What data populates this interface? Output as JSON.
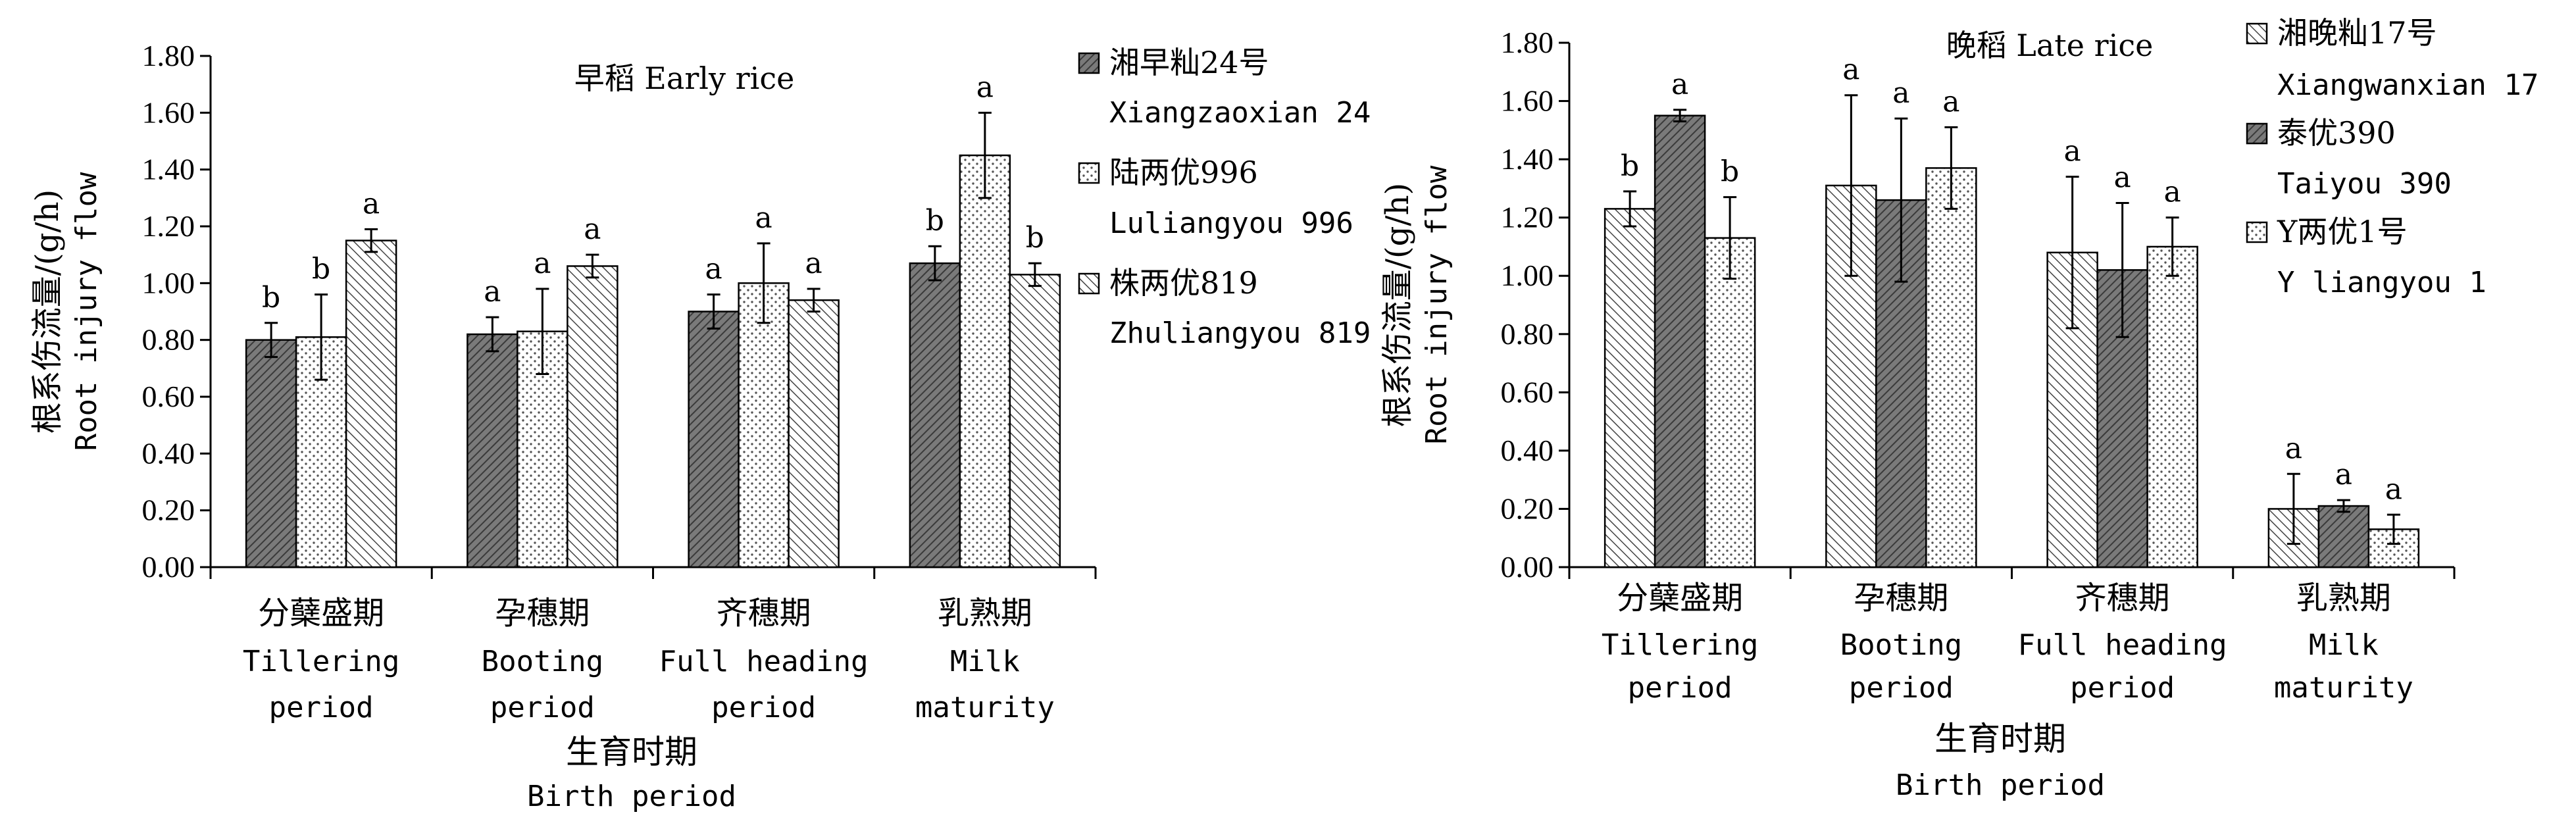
{
  "chart_data": [
    {
      "type": "bar",
      "title": "早稻 Early rice",
      "ylabel_zh": "根系伤流量/(g/h)",
      "ylabel_en": "Root injury flow",
      "xlabel_zh": "生育时期",
      "xlabel_en": "Birth period",
      "ylim": [
        0,
        1.8
      ],
      "yticks": [
        "0.00",
        "0.20",
        "0.40",
        "0.60",
        "0.80",
        "1.00",
        "1.20",
        "1.40",
        "1.60",
        "1.80"
      ],
      "categories": [
        {
          "zh": "分蘖盛期",
          "en1": "Tillering",
          "en2": "period"
        },
        {
          "zh": "孕穗期",
          "en1": "Booting",
          "en2": "period"
        },
        {
          "zh": "齐穗期",
          "en1": "Full heading",
          "en2": "period"
        },
        {
          "zh": "乳熟期",
          "en1": "Milk",
          "en2": "maturity"
        }
      ],
      "series": [
        {
          "name_zh": "湘早籼24号",
          "name_en": "Xiangzaoxian 24",
          "pattern": "dark",
          "values": [
            0.8,
            0.82,
            0.9,
            1.07
          ],
          "errors": [
            0.06,
            0.06,
            0.06,
            0.06
          ],
          "letters": [
            "b",
            "a",
            "a",
            "b"
          ]
        },
        {
          "name_zh": "陆两优996",
          "name_en": "Luliangyou 996",
          "pattern": "dots",
          "values": [
            0.81,
            0.83,
            1.0,
            1.45
          ],
          "errors": [
            0.15,
            0.15,
            0.14,
            0.15
          ],
          "letters": [
            "b",
            "a",
            "a",
            "a"
          ]
        },
        {
          "name_zh": "株两优819",
          "name_en": "Zhuliangyou 819",
          "pattern": "hatch",
          "values": [
            1.15,
            1.06,
            0.94,
            1.03
          ],
          "errors": [
            0.04,
            0.04,
            0.04,
            0.04
          ],
          "letters": [
            "a",
            "a",
            "a",
            "b"
          ]
        }
      ]
    },
    {
      "type": "bar",
      "title": "晚稻 Late rice",
      "ylabel_zh": "根系伤流量/(g/h)",
      "ylabel_en": "Root injury flow",
      "xlabel_zh": "生育时期",
      "xlabel_en": "Birth period",
      "ylim": [
        0,
        1.8
      ],
      "yticks": [
        "0.00",
        "0.20",
        "0.40",
        "0.60",
        "0.80",
        "1.00",
        "1.20",
        "1.40",
        "1.60",
        "1.80"
      ],
      "categories": [
        {
          "zh": "分蘖盛期",
          "en1": "Tillering",
          "en2": "period"
        },
        {
          "zh": "孕穗期",
          "en1": "Booting",
          "en2": "period"
        },
        {
          "zh": "齐穗期",
          "en1": "Full heading",
          "en2": "period"
        },
        {
          "zh": "乳熟期",
          "en1": "Milk",
          "en2": "maturity"
        }
      ],
      "series": [
        {
          "name_zh": "湘晚籼17号",
          "name_en": "Xiangwanxian 17",
          "pattern": "hatch",
          "values": [
            1.23,
            1.31,
            1.08,
            0.2
          ],
          "errors": [
            0.06,
            0.31,
            0.26,
            0.12
          ],
          "letters": [
            "b",
            "a",
            "a",
            "a"
          ]
        },
        {
          "name_zh": "泰优390",
          "name_en": "Taiyou 390",
          "pattern": "dark",
          "values": [
            1.55,
            1.26,
            1.02,
            0.21
          ],
          "errors": [
            0.02,
            0.28,
            0.23,
            0.02
          ],
          "letters": [
            "a",
            "a",
            "a",
            "a"
          ]
        },
        {
          "name_zh": "Y两优1号",
          "name_en": "Y liangyou 1",
          "pattern": "dots",
          "values": [
            1.13,
            1.37,
            1.1,
            0.13
          ],
          "errors": [
            0.14,
            0.14,
            0.1,
            0.05
          ],
          "letters": [
            "b",
            "a",
            "a",
            "a"
          ]
        }
      ]
    }
  ]
}
